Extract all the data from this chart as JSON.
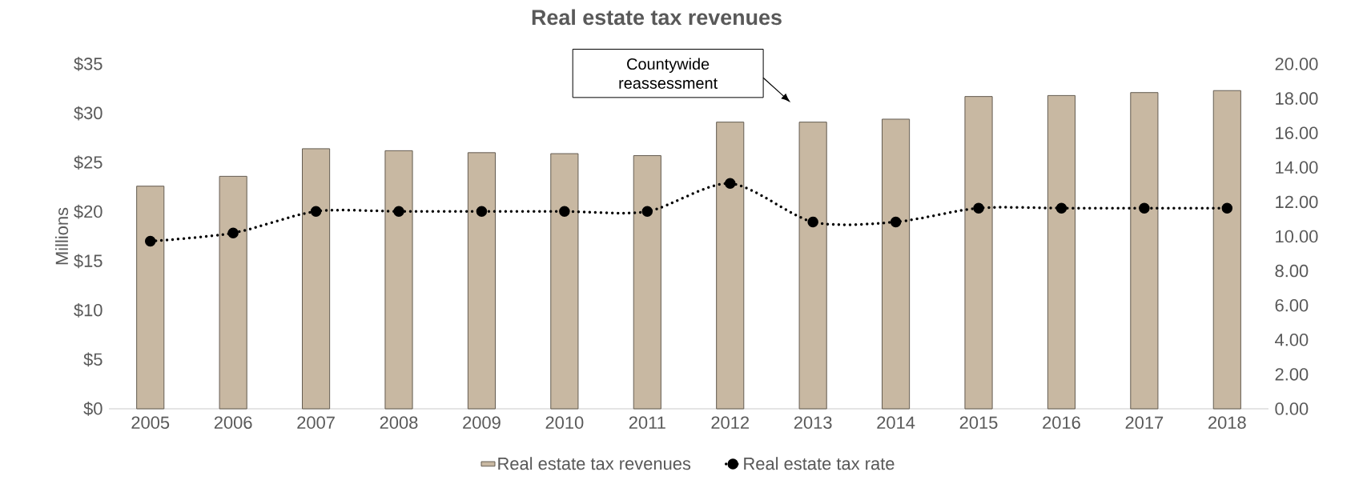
{
  "chart_data": {
    "type": "bar",
    "title": "Real estate tax revenues",
    "ylabel": "Millions",
    "categories": [
      "2005",
      "2006",
      "2007",
      "2008",
      "2009",
      "2010",
      "2011",
      "2012",
      "2013",
      "2014",
      "2015",
      "2016",
      "2017",
      "2018"
    ],
    "series": [
      {
        "name": "Real estate tax revenues",
        "color": "#c8b8a2",
        "values": [
          22.6,
          23.6,
          26.4,
          26.2,
          26.0,
          25.9,
          25.7,
          29.1,
          29.1,
          29.4,
          31.7,
          31.8,
          32.1,
          32.3
        ]
      },
      {
        "name": "Real estate tax rate",
        "type": "line",
        "axis": "y2",
        "color": "#000000",
        "marker": "circle",
        "line_style": "dotted",
        "values": [
          9.72,
          10.2,
          11.45,
          11.45,
          11.45,
          11.45,
          11.45,
          13.07,
          10.84,
          10.84,
          11.64,
          11.64,
          11.64,
          11.64
        ]
      }
    ],
    "ylim": [
      0,
      35
    ],
    "yticks": [
      {
        "value": 0,
        "label": "$0"
      },
      {
        "value": 5,
        "label": "$5"
      },
      {
        "value": 10,
        "label": "$10"
      },
      {
        "value": 15,
        "label": "$15"
      },
      {
        "value": 20,
        "label": "$20"
      },
      {
        "value": 25,
        "label": "$25"
      },
      {
        "value": 30,
        "label": "$30"
      },
      {
        "value": 35,
        "label": "$35"
      }
    ],
    "y2lim": [
      0,
      20
    ],
    "y2ticks": [
      {
        "value": 0,
        "label": "0.00"
      },
      {
        "value": 2,
        "label": "2.00"
      },
      {
        "value": 4,
        "label": "4.00"
      },
      {
        "value": 6,
        "label": "6.00"
      },
      {
        "value": 8,
        "label": "8.00"
      },
      {
        "value": 10,
        "label": "10.00"
      },
      {
        "value": 12,
        "label": "12.00"
      },
      {
        "value": 14,
        "label": "14.00"
      },
      {
        "value": 16,
        "label": "16.00"
      },
      {
        "value": 18,
        "label": "18.00"
      },
      {
        "value": 20,
        "label": "20.00"
      }
    ],
    "annotations": [
      "Countywide reassessment"
    ],
    "legend": "bottom",
    "grid": false
  }
}
